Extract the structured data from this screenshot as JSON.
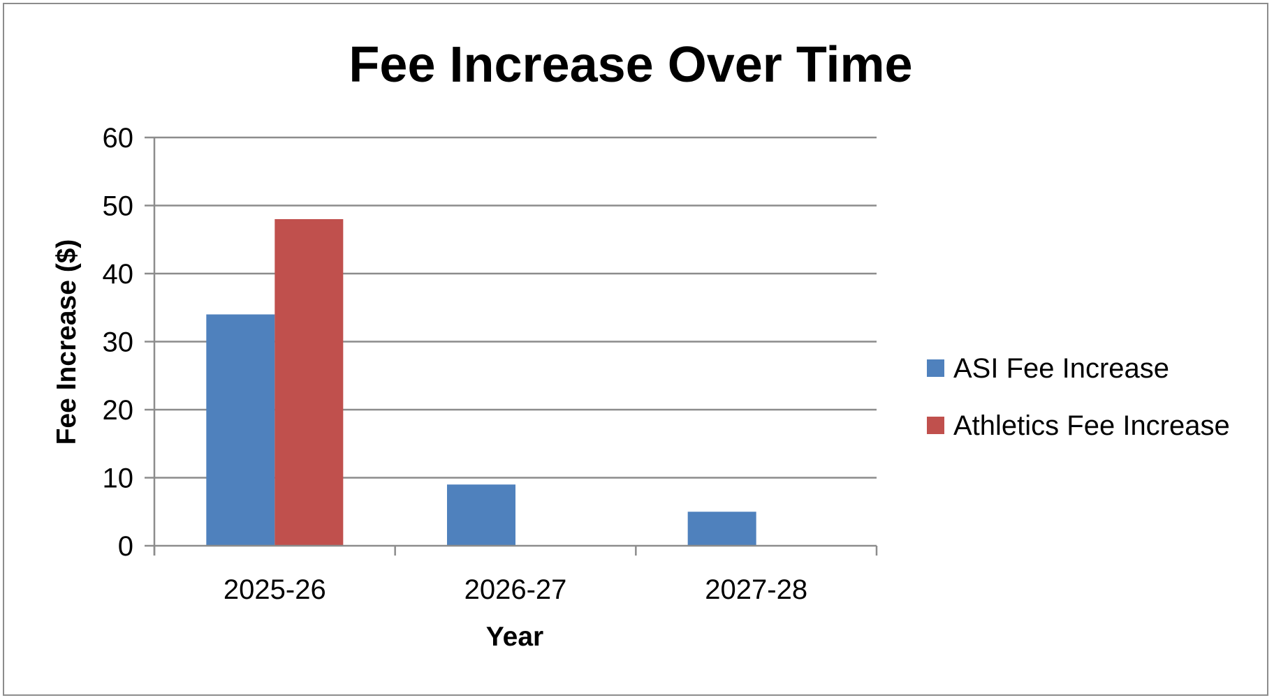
{
  "chart_data": {
    "type": "bar",
    "title": "Fee Increase Over Time",
    "xlabel": "Year",
    "ylabel": "Fee Increase ($)",
    "categories": [
      "2025-26",
      "2026-27",
      "2027-28"
    ],
    "series": [
      {
        "name": "ASI Fee Increase",
        "values": [
          34,
          9,
          5
        ],
        "color": "#4f81bd"
      },
      {
        "name": "Athletics Fee Increase",
        "values": [
          48,
          0,
          0
        ],
        "color": "#c0504d"
      }
    ],
    "ylim": [
      0,
      60
    ],
    "yticks": [
      0,
      10,
      20,
      30,
      40,
      50,
      60
    ],
    "grid": true,
    "legend_position": "right"
  }
}
